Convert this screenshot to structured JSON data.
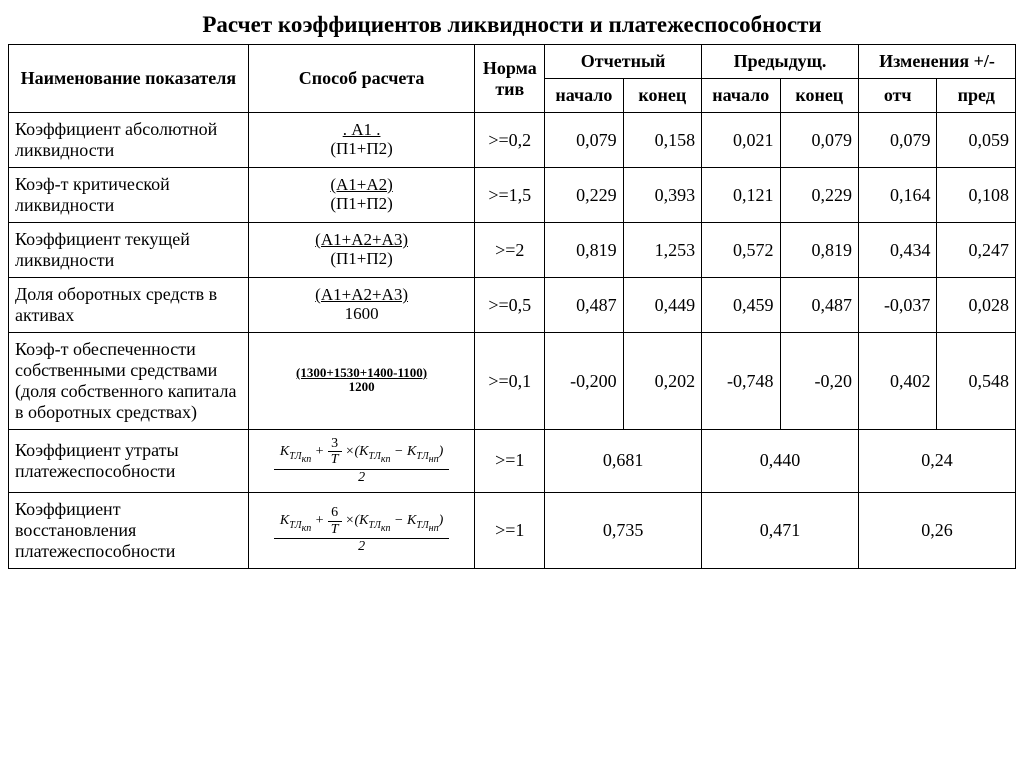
{
  "title": "Расчет коэффициентов ликвидности и платежеспособности",
  "headers": {
    "name": "Наименование показателя",
    "method": "Способ расчета",
    "norm": "Норма тив",
    "report": "Отчетный",
    "prev": "Предыдущ.",
    "change": "Изменения +/-",
    "start": "начало",
    "end": "конец",
    "ch_rep": "отч",
    "ch_prev": "пред"
  },
  "rows": [
    {
      "name": "Коэффициент абсолютной ликвидности",
      "formula_top": ".    А1    .",
      "formula_bot": "(П1+П2)",
      "underline": false,
      "norm": ">=0,2",
      "r_start": "0,079",
      "r_end": "0,158",
      "p_start": "0,021",
      "p_end": "0,079",
      "ch_r": "0,079",
      "ch_p": "0,059"
    },
    {
      "name": "Коэф-т критической ликвидности",
      "formula_top": "(А1+А2)",
      "formula_bot": "(П1+П2)",
      "underline": true,
      "norm": ">=1,5",
      "r_start": "0,229",
      "r_end": "0,393",
      "p_start": "0,121",
      "p_end": "0,229",
      "ch_r": "0,164",
      "ch_p": "0,108"
    },
    {
      "name": "Коэффициент текущей ликвидности",
      "formula_top": "(А1+А2+А3)",
      "formula_bot": "(П1+П2)",
      "underline": true,
      "norm": ">=2",
      "r_start": "0,819",
      "r_end": "1,253",
      "p_start": "0,572",
      "p_end": "0,819",
      "ch_r": "0,434",
      "ch_p": "0,247"
    },
    {
      "name": "Доля оборотных средств в активах",
      "formula_top": "(А1+А2+А3)",
      "formula_bot": "1600",
      "underline": true,
      "norm": ">=0,5",
      "r_start": "0,487",
      "r_end": "0,449",
      "p_start": "0,459",
      "p_end": "0,487",
      "ch_r": "-0,037",
      "ch_p": "0,028"
    },
    {
      "name": "Коэф-т обеспеченности собственными средствами (доля собственного капитала в оборотных средствах)",
      "formula_top": "(1300+1530+1400-1100)",
      "formula_bot": "1200",
      "underline": true,
      "bold": true,
      "small": true,
      "norm": ">=0,1",
      "r_start": "-0,200",
      "r_end": "0,202",
      "p_start": "-0,748",
      "p_end": "-0,20",
      "ch_r": "0,402",
      "ch_p": "0,548"
    }
  ],
  "span_rows": [
    {
      "name": "Коэффициент утраты платежеспособности",
      "k_num": "3",
      "norm": ">=1",
      "rep": "0,681",
      "prev": "0,440",
      "ch": "0,24"
    },
    {
      "name": "Коэффициент восстановления платежеспособности",
      "k_num": "6",
      "norm": ">=1",
      "rep": "0,735",
      "prev": "0,471",
      "ch": "0,26"
    }
  ],
  "style": {
    "bg": "#ffffff",
    "fg": "#000000",
    "border": "#000000",
    "font": "Times New Roman",
    "title_pt": 23,
    "cell_pt": 18
  }
}
